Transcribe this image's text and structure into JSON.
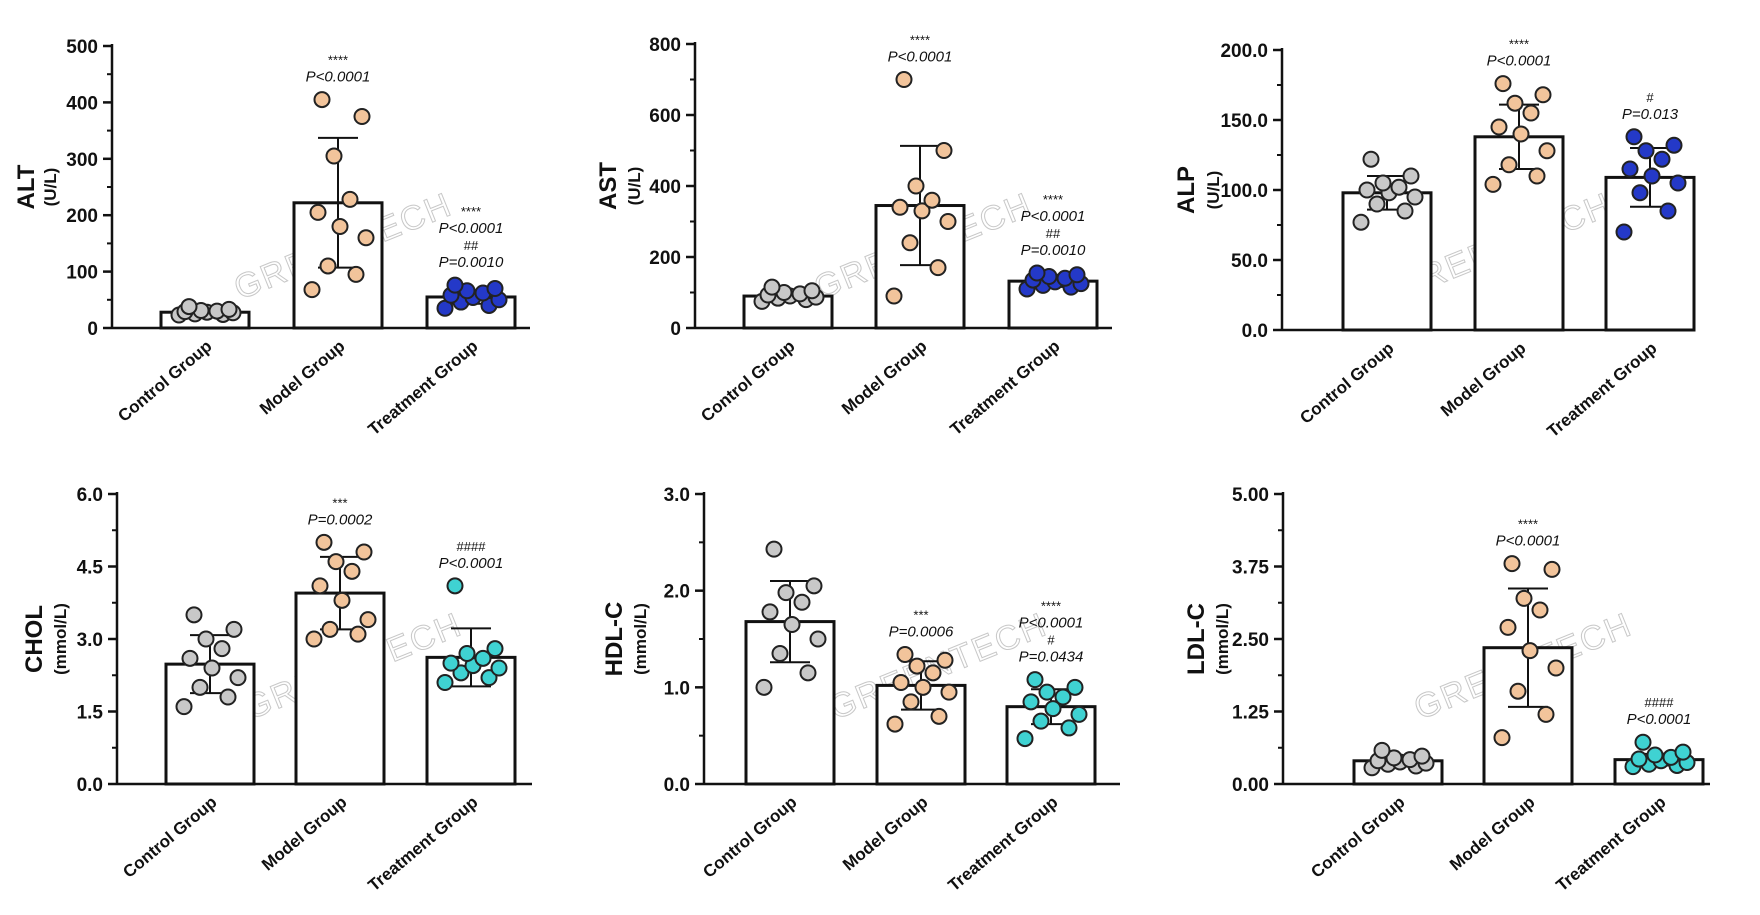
{
  "watermark": "GREENTECH",
  "colors": {
    "control": "#c8c8c8",
    "model": "#f2c49b",
    "treatment_blue": "#2439c8",
    "treatment_cyan": "#3fd2d2",
    "bar_fill": "#ffffff",
    "stroke": "#111111"
  },
  "chart_data": [
    {
      "type": "bar",
      "id": "alt",
      "ylabel": "ALT",
      "yunit": "(U/L)",
      "ylim": [
        0,
        500
      ],
      "yticks": [
        0,
        100,
        200,
        300,
        400,
        500
      ],
      "ytick_labels": [
        "0",
        "100",
        "200",
        "300",
        "400",
        "500"
      ],
      "categories": [
        "Control Group",
        "Model Group",
        "Treatment Group"
      ],
      "means": [
        28,
        222,
        55
      ],
      "sd": [
        6,
        115,
        12
      ],
      "point_colors": [
        "control",
        "model",
        "treatment_blue"
      ],
      "points": [
        [
          23,
          24,
          25,
          27,
          28,
          29,
          30,
          31,
          33,
          38
        ],
        [
          68,
          95,
          110,
          160,
          180,
          205,
          228,
          305,
          375,
          405
        ],
        [
          35,
          40,
          46,
          50,
          54,
          58,
          62,
          66,
          70,
          76
        ]
      ],
      "annotations": [
        [],
        [
          "****",
          "P<0.0001"
        ],
        [
          "****",
          "P<0.0001",
          "##",
          "P=0.0010"
        ]
      ]
    },
    {
      "type": "bar",
      "id": "ast",
      "ylabel": "AST",
      "yunit": "(U/L)",
      "ylim": [
        0,
        800
      ],
      "yticks": [
        0,
        200,
        400,
        600,
        800
      ],
      "ytick_labels": [
        "0",
        "200",
        "400",
        "600",
        "800"
      ],
      "categories": [
        "Control Group",
        "Model Group",
        "Treatment Group"
      ],
      "means": [
        90,
        345,
        132
      ],
      "sd": [
        12,
        168,
        16
      ],
      "point_colors": [
        "control",
        "model",
        "treatment_blue"
      ],
      "points": [
        [
          75,
          80,
          84,
          87,
          90,
          93,
          96,
          100,
          105,
          115
        ],
        [
          90,
          170,
          240,
          300,
          330,
          340,
          360,
          400,
          500,
          700
        ],
        [
          110,
          115,
          120,
          125,
          130,
          135,
          140,
          145,
          150,
          155
        ]
      ],
      "annotations": [
        [],
        [
          "****",
          "P<0.0001"
        ],
        [
          "****",
          "P<0.0001",
          "##",
          "P=0.0010"
        ]
      ]
    },
    {
      "type": "bar",
      "id": "alp",
      "ylabel": "ALP",
      "yunit": "(U/L)",
      "ylim": [
        0,
        200
      ],
      "yticks": [
        0,
        50,
        100,
        150,
        200
      ],
      "ytick_labels": [
        "0.0",
        "50.0",
        "100.0",
        "150.0",
        "200.0"
      ],
      "categories": [
        "Control Group",
        "Model Group",
        "Treatment Group"
      ],
      "means": [
        98,
        138,
        109
      ],
      "sd": [
        12,
        23,
        21
      ],
      "point_colors": [
        "control",
        "model",
        "treatment_blue"
      ],
      "points": [
        [
          77,
          85,
          90,
          95,
          98,
          100,
          102,
          105,
          110,
          122
        ],
        [
          104,
          110,
          118,
          128,
          140,
          145,
          155,
          162,
          168,
          176
        ],
        [
          70,
          85,
          98,
          105,
          110,
          115,
          122,
          128,
          132,
          138
        ]
      ],
      "annotations": [
        [],
        [
          "****",
          "P<0.0001"
        ],
        [
          "#",
          "P=0.013"
        ]
      ]
    },
    {
      "type": "bar",
      "id": "chol",
      "ylabel": "CHOL",
      "yunit": "(mmol/L)",
      "ylim": [
        0,
        6
      ],
      "yticks": [
        0,
        1.5,
        3,
        4.5,
        6
      ],
      "ytick_labels": [
        "0.0",
        "1.5",
        "3.0",
        "4.5",
        "6.0"
      ],
      "categories": [
        "Control Group",
        "Model Group",
        "Treatment Group"
      ],
      "means": [
        2.48,
        3.95,
        2.62
      ],
      "sd": [
        0.6,
        0.75,
        0.6
      ],
      "point_colors": [
        "control",
        "model",
        "treatment_cyan"
      ],
      "points": [
        [
          1.6,
          1.8,
          2.0,
          2.2,
          2.4,
          2.6,
          2.8,
          3.0,
          3.2,
          3.5
        ],
        [
          3.0,
          3.1,
          3.2,
          3.4,
          3.8,
          4.1,
          4.4,
          4.6,
          4.8,
          5.0
        ],
        [
          2.1,
          2.2,
          2.3,
          2.4,
          2.45,
          2.5,
          2.6,
          2.7,
          2.8,
          4.1
        ]
      ],
      "annotations": [
        [],
        [
          "***",
          "P=0.0002"
        ],
        [
          "####",
          "P<0.0001"
        ]
      ]
    },
    {
      "type": "bar",
      "id": "hdlc",
      "ylabel": "HDL-C",
      "yunit": "(mmol/L)",
      "ylim": [
        0,
        3
      ],
      "yticks": [
        0,
        1,
        2,
        3
      ],
      "ytick_labels": [
        "0.0",
        "1.0",
        "2.0",
        "3.0"
      ],
      "categories": [
        "Control Group",
        "Model Group",
        "Treatment Group"
      ],
      "means": [
        1.68,
        1.02,
        0.8
      ],
      "sd": [
        0.42,
        0.25,
        0.18
      ],
      "point_colors": [
        "control",
        "model",
        "treatment_cyan"
      ],
      "points": [
        [
          1.0,
          1.15,
          1.35,
          1.5,
          1.65,
          1.78,
          1.88,
          1.98,
          2.05,
          2.43
        ],
        [
          0.62,
          0.7,
          0.85,
          0.95,
          1.0,
          1.05,
          1.15,
          1.22,
          1.28,
          1.34
        ],
        [
          0.47,
          0.58,
          0.65,
          0.72,
          0.78,
          0.85,
          0.9,
          0.95,
          1.0,
          1.08
        ]
      ],
      "annotations": [
        [],
        [
          "***",
          "P=0.0006"
        ],
        [
          "****",
          "P<0.0001",
          "#",
          "P=0.0434"
        ]
      ]
    },
    {
      "type": "bar",
      "id": "ldlc",
      "ylabel": "LDL-C",
      "yunit": "(mmol/L)",
      "ylim": [
        0,
        5
      ],
      "yticks": [
        0,
        1.25,
        2.5,
        3.75,
        5
      ],
      "ytick_labels": [
        "0.00",
        "1.25",
        "2.50",
        "3.75",
        "5.00"
      ],
      "categories": [
        "Control Group",
        "Model Group",
        "Treatment Group"
      ],
      "means": [
        0.4,
        2.35,
        0.42
      ],
      "sd": [
        0.08,
        1.02,
        0.1
      ],
      "point_colors": [
        "control",
        "model",
        "treatment_cyan"
      ],
      "points": [
        [
          0.28,
          0.31,
          0.34,
          0.36,
          0.38,
          0.4,
          0.42,
          0.45,
          0.48,
          0.58
        ],
        [
          0.8,
          1.2,
          1.6,
          2.0,
          2.3,
          2.7,
          3.0,
          3.2,
          3.7,
          3.8
        ],
        [
          0.3,
          0.32,
          0.34,
          0.37,
          0.4,
          0.43,
          0.46,
          0.5,
          0.55,
          0.72
        ]
      ],
      "annotations": [
        [],
        [
          "****",
          "P<0.0001"
        ],
        [
          "####",
          "P<0.0001"
        ]
      ]
    }
  ]
}
